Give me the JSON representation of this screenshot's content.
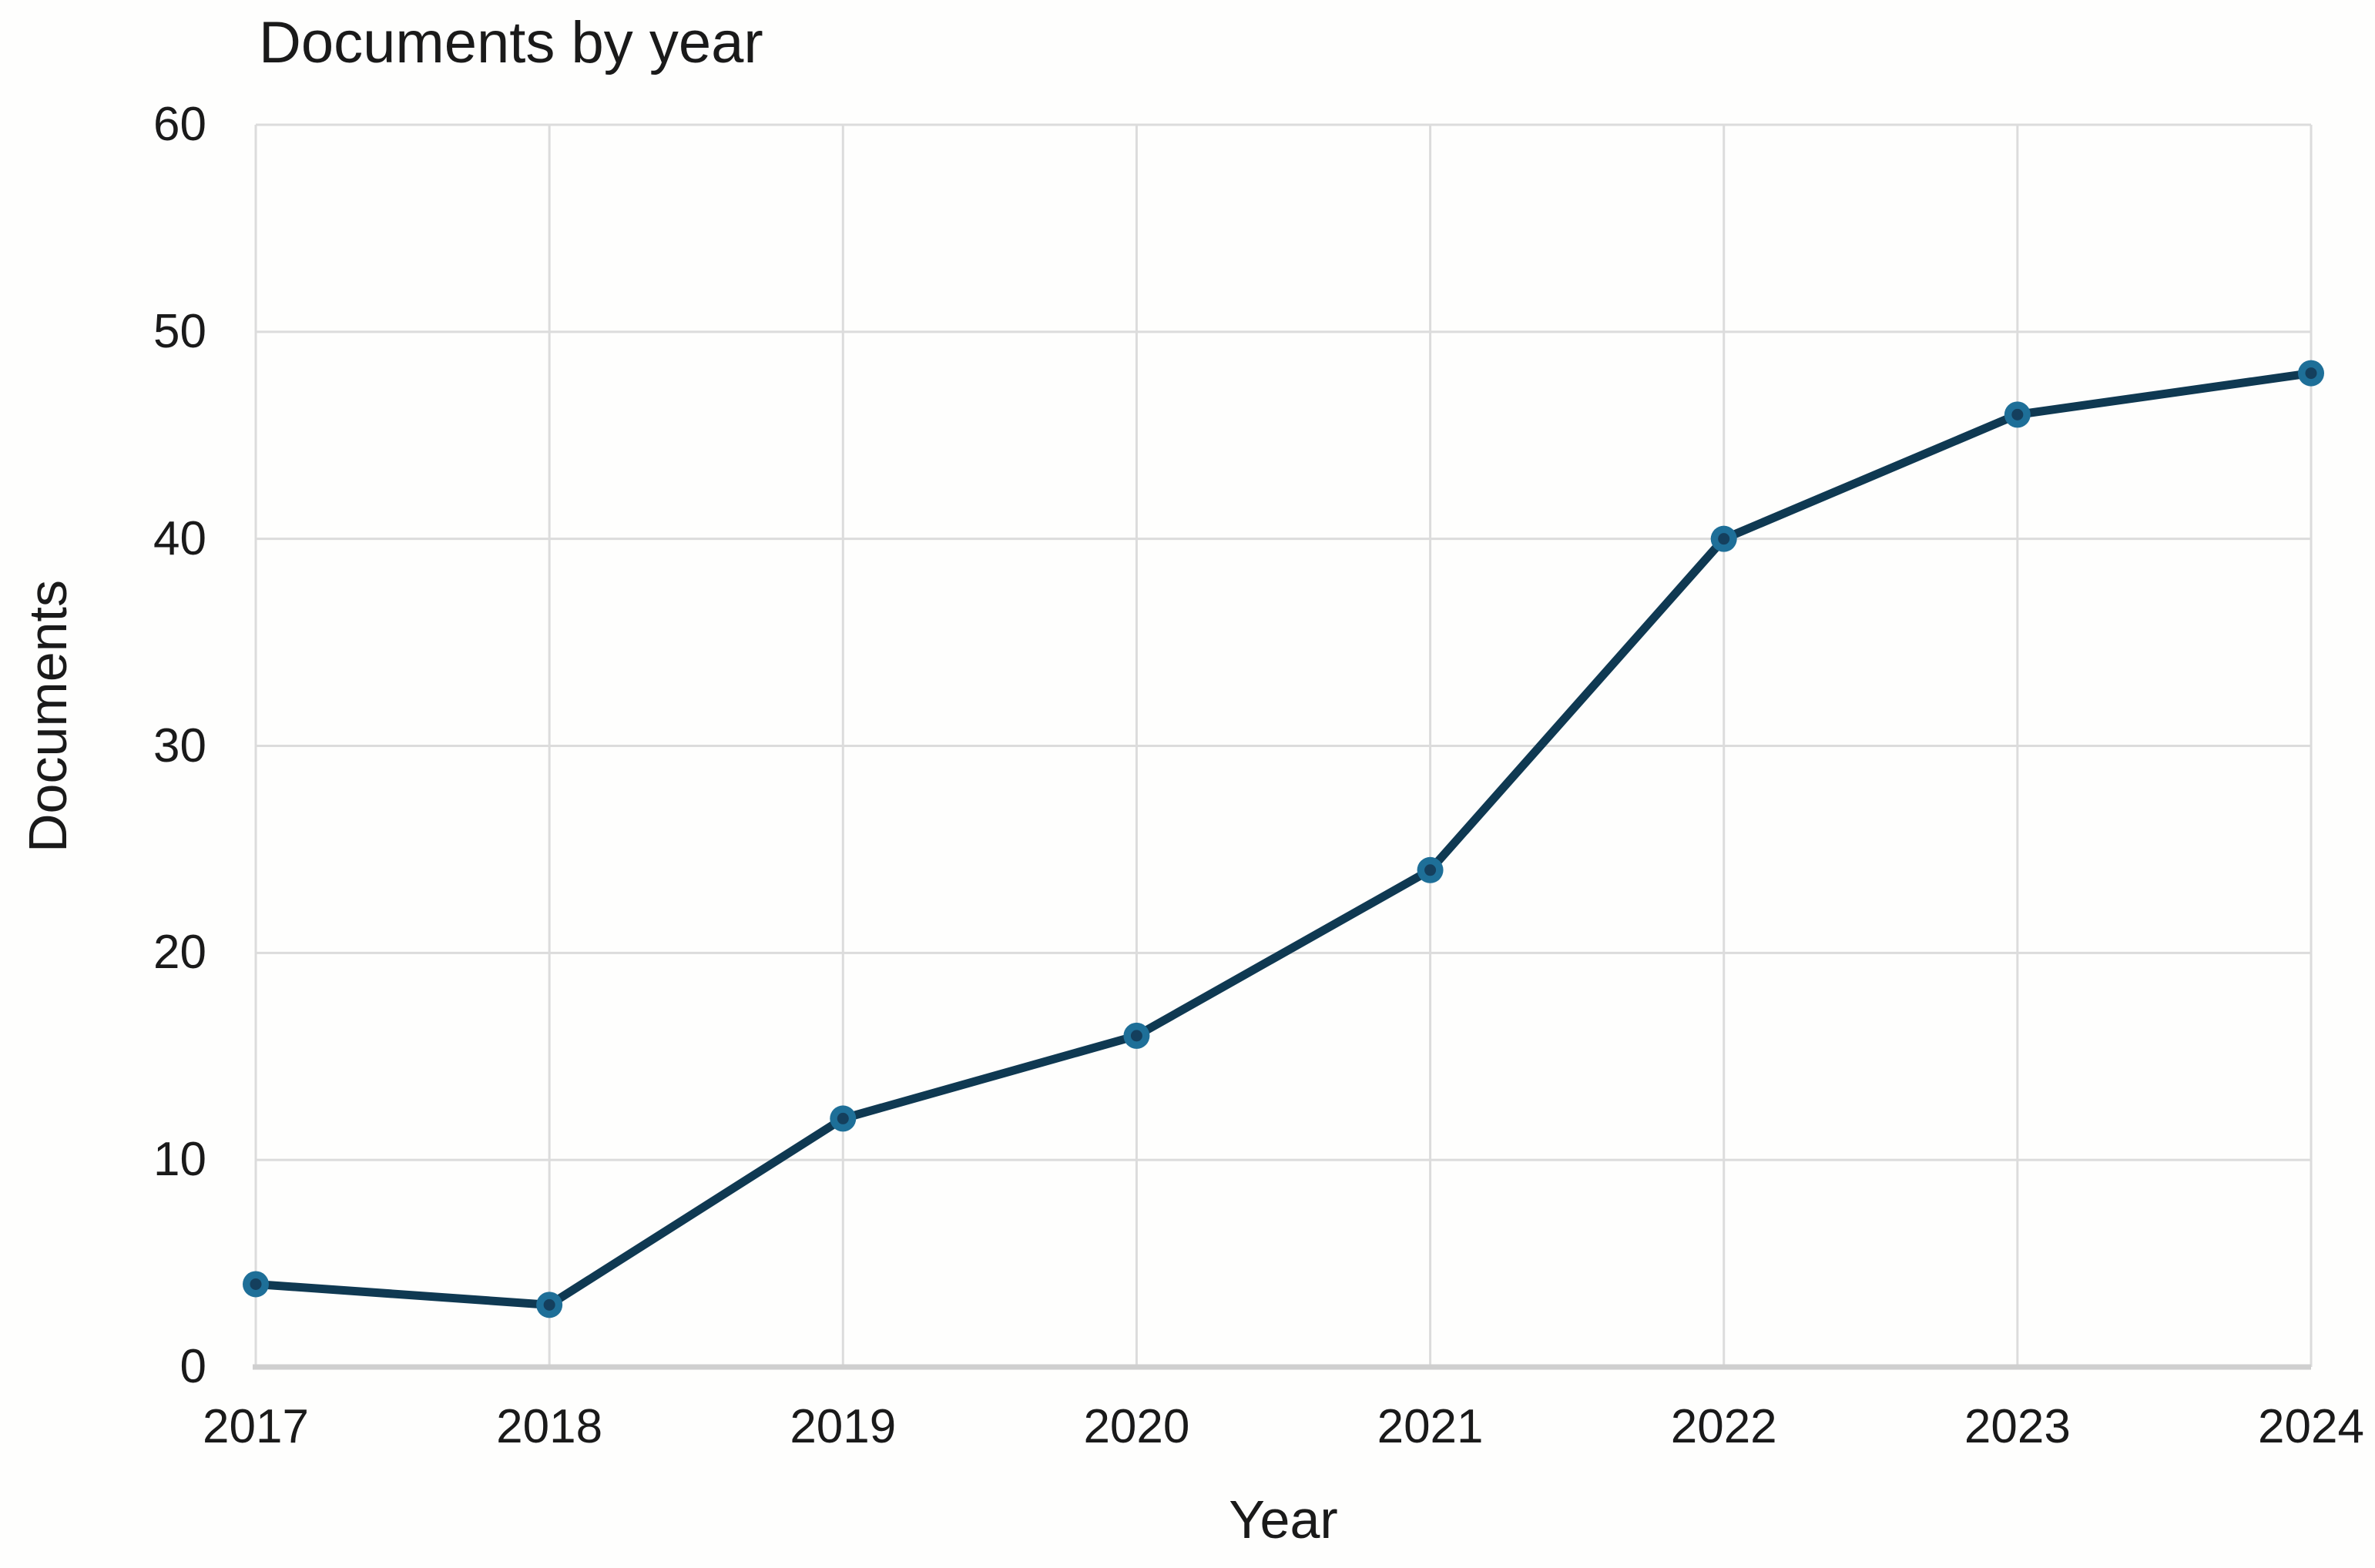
{
  "page": {
    "background_color": "#fefefd",
    "text_color": "#1a1a1a"
  },
  "chart_data": {
    "type": "line",
    "title": "Documents by year",
    "xlabel": "Year",
    "ylabel": "Documents",
    "x": [
      2017,
      2018,
      2019,
      2020,
      2021,
      2022,
      2023,
      2024
    ],
    "series": [
      {
        "name": "Documents",
        "values": [
          4,
          3,
          12,
          16,
          24,
          40,
          46,
          48
        ]
      }
    ],
    "ylim": [
      0,
      60
    ],
    "yticks": [
      0,
      10,
      20,
      30,
      40,
      50,
      60
    ],
    "grid": true,
    "legend": "none",
    "line_color": "#0f3952",
    "marker_color": "#1e6f98",
    "marker_core_color": "#143f5d",
    "gridline_color": "#dcdcdc",
    "axis_line_color": "#cfcfcf"
  }
}
